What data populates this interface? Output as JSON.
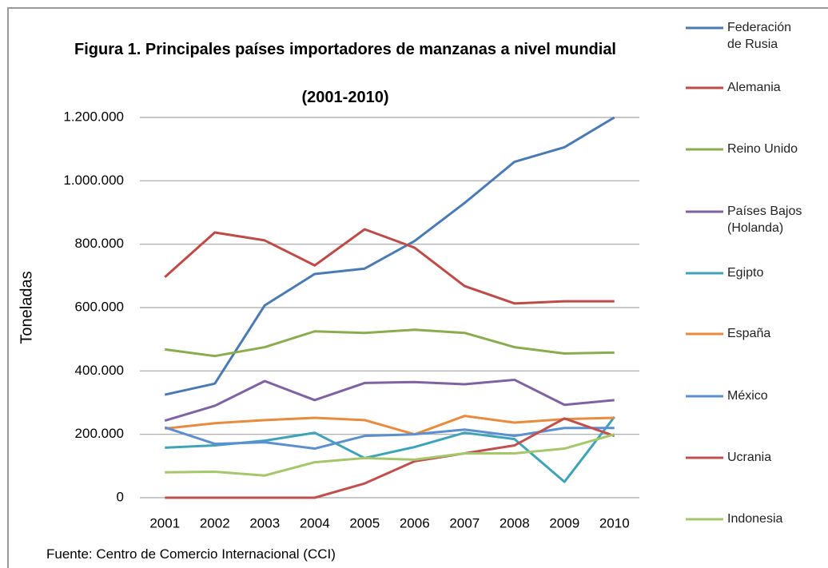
{
  "chart_data": {
    "type": "line",
    "title": "Figura 1. Principales países importadores de manzanas a nivel mundial",
    "subtitle": "(2001-2010)",
    "y_label": "Toneladas",
    "source": "Fuente: Centro de Comercio Internacional (CCI)",
    "categories": [
      "2001",
      "2002",
      "2003",
      "2004",
      "2005",
      "2006",
      "2007",
      "2008",
      "2009",
      "2010"
    ],
    "ylim": [
      0,
      1200000
    ],
    "yticks": [
      0,
      {
        "value": 200000,
        "label": "200.000"
      },
      {
        "value": 400000,
        "label": "400.000"
      },
      {
        "value": 600000,
        "label": "600.000"
      },
      {
        "value": 800000,
        "label": "800.000"
      },
      {
        "value": 1000000,
        "label": "1.000.000"
      },
      {
        "value": 1200000,
        "label": "1.200.000"
      }
    ],
    "grid": true,
    "series": [
      {
        "name": "Federación de Rusia",
        "color": "#4a7ab5",
        "values": [
          325000,
          360000,
          607000,
          706000,
          723000,
          810000,
          930000,
          1060000,
          1106000,
          1200000
        ]
      },
      {
        "name": "Alemania",
        "color": "#be4b48",
        "values": [
          696000,
          837000,
          812000,
          733000,
          847000,
          789000,
          668000,
          613000,
          620000,
          620000
        ]
      },
      {
        "name": "Reino Unido",
        "color": "#8aac4f",
        "values": [
          468000,
          447000,
          475000,
          525000,
          520000,
          530000,
          520000,
          475000,
          455000,
          458000
        ]
      },
      {
        "name": "Países Bajos (Holanda)",
        "color": "#7e62a1",
        "values": [
          243000,
          290000,
          368000,
          308000,
          362000,
          365000,
          358000,
          372000,
          293000,
          308000
        ]
      },
      {
        "name": "Egipto",
        "color": "#3ea3b8",
        "values": [
          158000,
          165000,
          180000,
          205000,
          125000,
          160000,
          205000,
          185000,
          50000,
          255000
        ]
      },
      {
        "name": "España",
        "color": "#e88b3e",
        "values": [
          218000,
          235000,
          245000,
          252000,
          245000,
          200000,
          258000,
          237000,
          248000,
          252000
        ]
      },
      {
        "name": "México",
        "color": "#5b8fcf",
        "values": [
          222000,
          170000,
          175000,
          155000,
          195000,
          200000,
          215000,
          195000,
          220000,
          220000
        ]
      },
      {
        "name": "Ucrania",
        "color": "#c0504d",
        "values": [
          0,
          0,
          0,
          0,
          45000,
          115000,
          140000,
          165000,
          250000,
          195000
        ]
      },
      {
        "name": "Indonesia",
        "color": "#a5c66b",
        "values": [
          80000,
          82000,
          70000,
          112000,
          125000,
          120000,
          140000,
          140000,
          155000,
          200000
        ]
      }
    ]
  }
}
